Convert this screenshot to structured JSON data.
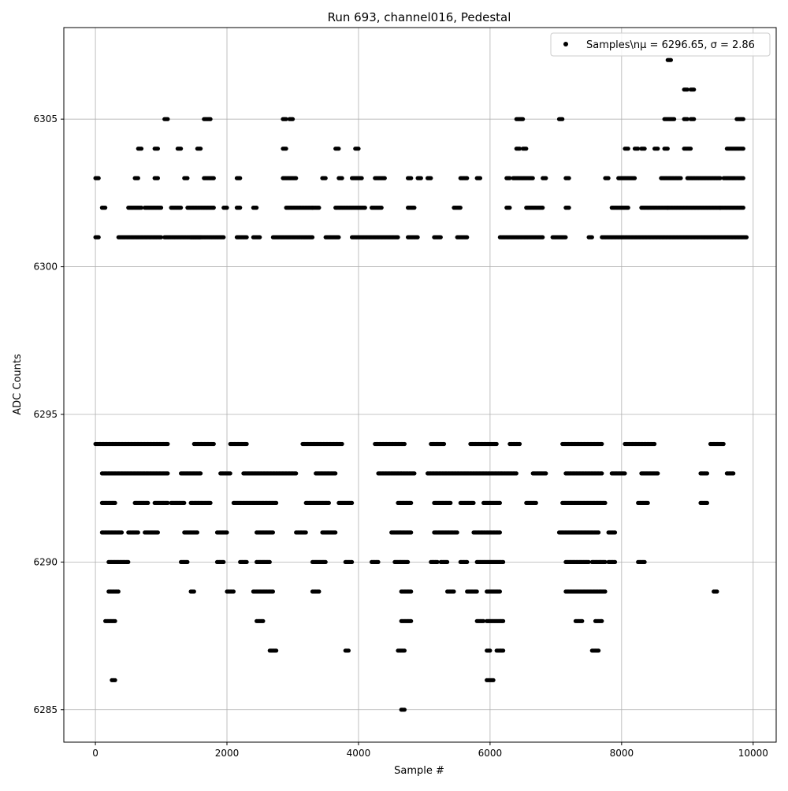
{
  "chart_data": {
    "type": "scatter",
    "title": "Run 693, channel016, Pedestal",
    "xlabel": "Sample #",
    "ylabel": "ADC Counts",
    "xlim": [
      -480,
      10350
    ],
    "ylim": [
      6283.9,
      6308.1
    ],
    "x_ticks": [
      0,
      2000,
      4000,
      6000,
      8000,
      10000
    ],
    "x_tick_labels": [
      "0",
      "2000",
      "4000",
      "6000",
      "8000",
      "10000"
    ],
    "y_ticks": [
      6285,
      6290,
      6295,
      6300,
      6305
    ],
    "y_tick_labels": [
      "6285",
      "6290",
      "6295",
      "6300",
      "6305"
    ],
    "grid": true,
    "legend_position": "top-right",
    "series": [
      {
        "name": "Samples\\n$\\mu$ = 6296.65, $\\sigma$ = 2.86",
        "legend_label": "Samples\\nμ = 6296.65, σ = 2.86",
        "color": "#000000",
        "marker": "circle",
        "level_segments": [
          {
            "y": 6294,
            "ranges": [
              [
                0,
                1100
              ],
              [
                1500,
                1800
              ],
              [
                2050,
                2300
              ],
              [
                3150,
                3750
              ],
              [
                4250,
                4700
              ],
              [
                5100,
                5300
              ],
              [
                5700,
                6100
              ],
              [
                6300,
                6450
              ],
              [
                7100,
                7700
              ],
              [
                8050,
                8500
              ],
              [
                9350,
                9550
              ]
            ]
          },
          {
            "y": 6293,
            "ranges": [
              [
                100,
                1100
              ],
              [
                1300,
                1600
              ],
              [
                1900,
                2050
              ],
              [
                2250,
                3050
              ],
              [
                3350,
                3650
              ],
              [
                4300,
                4850
              ],
              [
                5050,
                6400
              ],
              [
                6650,
                6850
              ],
              [
                7150,
                7700
              ],
              [
                7850,
                8050
              ],
              [
                8300,
                8550
              ],
              [
                9200,
                9300
              ],
              [
                9600,
                9700
              ]
            ]
          },
          {
            "y": 6292,
            "ranges": [
              [
                100,
                300
              ],
              [
                600,
                800
              ],
              [
                900,
                1100
              ],
              [
                1150,
                1350
              ],
              [
                1450,
                1750
              ],
              [
                2100,
                2750
              ],
              [
                3200,
                3550
              ],
              [
                3700,
                3900
              ],
              [
                4600,
                4800
              ],
              [
                5150,
                5400
              ],
              [
                5550,
                5750
              ],
              [
                5900,
                6150
              ],
              [
                6550,
                6700
              ],
              [
                7100,
                7750
              ],
              [
                8250,
                8400
              ],
              [
                9200,
                9300
              ]
            ]
          },
          {
            "y": 6291,
            "ranges": [
              [
                100,
                400
              ],
              [
                500,
                650
              ],
              [
                750,
                950
              ],
              [
                1350,
                1550
              ],
              [
                1850,
                2000
              ],
              [
                2450,
                2700
              ],
              [
                3050,
                3200
              ],
              [
                3450,
                3650
              ],
              [
                4500,
                4800
              ],
              [
                5150,
                5500
              ],
              [
                5750,
                6150
              ],
              [
                7050,
                7650
              ],
              [
                7800,
                7900
              ]
            ]
          },
          {
            "y": 6290,
            "ranges": [
              [
                200,
                500
              ],
              [
                1300,
                1400
              ],
              [
                1850,
                1950
              ],
              [
                2200,
                2300
              ],
              [
                2450,
                2650
              ],
              [
                3300,
                3500
              ],
              [
                3800,
                3900
              ],
              [
                4200,
                4300
              ],
              [
                4550,
                4750
              ],
              [
                5100,
                5200
              ],
              [
                5250,
                5350
              ],
              [
                5550,
                5650
              ],
              [
                5800,
                6200
              ],
              [
                7150,
                7500
              ],
              [
                7550,
                7750
              ],
              [
                7800,
                7900
              ],
              [
                8250,
                8350
              ]
            ]
          },
          {
            "y": 6289,
            "ranges": [
              [
                200,
                350
              ],
              [
                1450,
                1500
              ],
              [
                2000,
                2100
              ],
              [
                2400,
                2700
              ],
              [
                3300,
                3400
              ],
              [
                4650,
                4800
              ],
              [
                5350,
                5450
              ],
              [
                5650,
                5800
              ],
              [
                5950,
                6150
              ],
              [
                7150,
                7750
              ],
              [
                9400,
                9450
              ]
            ]
          },
          {
            "y": 6288,
            "ranges": [
              [
                150,
                300
              ],
              [
                2450,
                2550
              ],
              [
                4650,
                4800
              ],
              [
                5800,
                5900
              ],
              [
                5950,
                6200
              ],
              [
                7300,
                7400
              ],
              [
                7600,
                7700
              ]
            ]
          },
          {
            "y": 6287,
            "ranges": [
              [
                2650,
                2750
              ],
              [
                3800,
                3850
              ],
              [
                4600,
                4700
              ],
              [
                5950,
                6000
              ],
              [
                6100,
                6200
              ],
              [
                7550,
                7650
              ]
            ]
          },
          {
            "y": 6286,
            "ranges": [
              [
                250,
                300
              ],
              [
                5950,
                6050
              ]
            ]
          },
          {
            "y": 6285,
            "ranges": [
              [
                4650,
                4700
              ]
            ]
          },
          {
            "y": 6301,
            "ranges": [
              [
                0,
                50
              ],
              [
                350,
                1000
              ],
              [
                1050,
                1600
              ],
              [
                1450,
                1950
              ],
              [
                2150,
                2300
              ],
              [
                2400,
                2500
              ],
              [
                2700,
                3300
              ],
              [
                3500,
                3700
              ],
              [
                3900,
                4600
              ],
              [
                4750,
                4900
              ],
              [
                5150,
                5250
              ],
              [
                5500,
                5650
              ],
              [
                6150,
                6800
              ],
              [
                6950,
                7150
              ],
              [
                7500,
                7550
              ],
              [
                7700,
                9900
              ]
            ]
          },
          {
            "y": 6302,
            "ranges": [
              [
                100,
                150
              ],
              [
                500,
                700
              ],
              [
                750,
                1000
              ],
              [
                1150,
                1300
              ],
              [
                1400,
                1800
              ],
              [
                1950,
                2000
              ],
              [
                2150,
                2200
              ],
              [
                2400,
                2450
              ],
              [
                2900,
                3300
              ],
              [
                3300,
                3400
              ],
              [
                3650,
                4100
              ],
              [
                4200,
                4350
              ],
              [
                4750,
                4850
              ],
              [
                5450,
                5550
              ],
              [
                6250,
                6300
              ],
              [
                6550,
                6800
              ],
              [
                7150,
                7200
              ],
              [
                7850,
                8100
              ],
              [
                8300,
                8700
              ],
              [
                8700,
                9500
              ],
              [
                9500,
                9850
              ]
            ]
          },
          {
            "y": 6303,
            "ranges": [
              [
                0,
                50
              ],
              [
                600,
                650
              ],
              [
                900,
                950
              ],
              [
                1350,
                1400
              ],
              [
                1650,
                1800
              ],
              [
                2150,
                2200
              ],
              [
                2850,
                3050
              ],
              [
                3450,
                3500
              ],
              [
                3700,
                3750
              ],
              [
                3900,
                4050
              ],
              [
                4250,
                4400
              ],
              [
                4750,
                4800
              ],
              [
                4900,
                4950
              ],
              [
                5050,
                5100
              ],
              [
                5550,
                5650
              ],
              [
                5800,
                5850
              ],
              [
                6250,
                6300
              ],
              [
                6350,
                6650
              ],
              [
                6800,
                6850
              ],
              [
                7150,
                7200
              ],
              [
                7750,
                7800
              ],
              [
                7950,
                8200
              ],
              [
                8600,
                8900
              ],
              [
                9000,
                9500
              ],
              [
                9550,
                9850
              ]
            ]
          },
          {
            "y": 6304,
            "ranges": [
              [
                650,
                700
              ],
              [
                900,
                950
              ],
              [
                1250,
                1300
              ],
              [
                1550,
                1600
              ],
              [
                2850,
                2900
              ],
              [
                3650,
                3700
              ],
              [
                3950,
                4000
              ],
              [
                6400,
                6450
              ],
              [
                6500,
                6550
              ],
              [
                8050,
                8100
              ],
              [
                8200,
                8250
              ],
              [
                8300,
                8350
              ],
              [
                8500,
                8550
              ],
              [
                8650,
                8700
              ],
              [
                8950,
                9050
              ],
              [
                9600,
                9850
              ]
            ]
          },
          {
            "y": 6305,
            "ranges": [
              [
                1050,
                1100
              ],
              [
                1650,
                1750
              ],
              [
                2850,
                2900
              ],
              [
                2950,
                3000
              ],
              [
                6400,
                6500
              ],
              [
                7050,
                7100
              ],
              [
                8650,
                8800
              ],
              [
                8950,
                9000
              ],
              [
                9050,
                9100
              ],
              [
                9750,
                9850
              ]
            ]
          },
          {
            "y": 6306,
            "ranges": [
              [
                8950,
                9000
              ],
              [
                9050,
                9100
              ]
            ]
          },
          {
            "y": 6307,
            "ranges": [
              [
                8700,
                8750
              ]
            ]
          }
        ]
      }
    ]
  }
}
